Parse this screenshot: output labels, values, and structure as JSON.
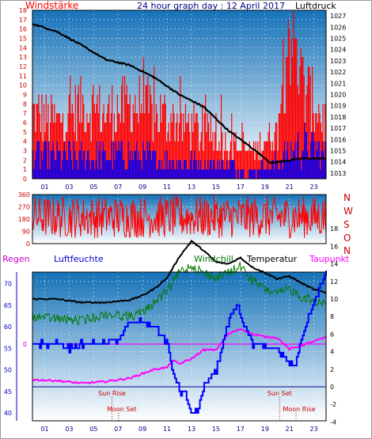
{
  "colors": {
    "wind": "#ff0000",
    "gust_bar": "#ff0000",
    "avg_wind": "#0000ff",
    "pressure": "#000000",
    "direction": "#ff0000",
    "humidity": "#0000ff",
    "windchill": "#007700",
    "temperature": "#000000",
    "dewpoint": "#ff00ff",
    "marker": "#cc0000",
    "zero_line": "#000088",
    "plot_top": "#1572b8",
    "plot_bottom": "#ffffff"
  },
  "chart_data": [
    {
      "type": "bar",
      "title": "24 hour graph day : 12 April 2017",
      "ylabel": "Windstärke",
      "y2label": "Luftdruck",
      "ylim": [
        0,
        18
      ],
      "y2lim": [
        1012.5,
        1027.5
      ],
      "yticks": [
        "0",
        "1",
        "2",
        "3",
        "4",
        "5",
        "6",
        "7",
        "8",
        "9",
        "10",
        "11",
        "12",
        "13",
        "14",
        "15",
        "16",
        "17",
        "18"
      ],
      "y2ticks": [
        "1013",
        "1014",
        "1015",
        "1016",
        "1017",
        "1018",
        "1019",
        "1020",
        "1021",
        "1022",
        "1023",
        "1024",
        "1025",
        "1026",
        "1027"
      ],
      "xticks": [
        "01",
        "03",
        "05",
        "07",
        "09",
        "11",
        "13",
        "15",
        "17",
        "19",
        "21",
        "23"
      ],
      "grid": true,
      "series": [
        {
          "name": "Windstärke",
          "role": "gust",
          "hours": [
            0,
            2,
            4,
            6,
            8,
            10,
            12,
            14,
            16,
            18,
            20,
            21,
            22,
            24
          ],
          "values": [
            7,
            6,
            8,
            7,
            8,
            7,
            6,
            5,
            4,
            3,
            5,
            17,
            10,
            6
          ]
        },
        {
          "name": "Windstärke",
          "role": "average",
          "hours": [
            0,
            4,
            8,
            12,
            16,
            18,
            20,
            22,
            24
          ],
          "values": [
            3,
            2.5,
            3,
            2,
            1.5,
            1,
            2,
            4,
            3
          ]
        },
        {
          "name": "Luftdruck",
          "role": "pressure",
          "hours": [
            0,
            2,
            4,
            6,
            8,
            10,
            12,
            14,
            16,
            18,
            19.5,
            22,
            24
          ],
          "values": [
            1026.3,
            1025.6,
            1024.4,
            1023.1,
            1022.6,
            1021.5,
            1020.0,
            1018.9,
            1016.8,
            1015.2,
            1013.9,
            1014.3,
            1014.3
          ]
        }
      ]
    },
    {
      "type": "line",
      "ylim": [
        0,
        360
      ],
      "yticks": [
        "0",
        "90",
        "180",
        "270",
        "360"
      ],
      "y2ticks": [
        "N",
        "W",
        "S",
        "O",
        "N"
      ],
      "grid": true,
      "series": [
        {
          "name": "Windrichtung",
          "center": 200,
          "range_low": 40,
          "range_high": 350
        }
      ]
    },
    {
      "type": "line",
      "ylabel": "Regen",
      "y1label": "Luftfeuchte",
      "legend": [
        "Windchill",
        "Temperatur",
        "Taupunkt"
      ],
      "ylim": [
        39,
        74
      ],
      "yticks": [
        "40",
        "45",
        "50",
        "55",
        "60",
        "65",
        "70"
      ],
      "y2lim": [
        -5,
        19
      ],
      "y2ticks": [
        "-4",
        "-2",
        "0",
        "2",
        "4",
        "6",
        "8",
        "10",
        "12",
        "14",
        "16",
        "18"
      ],
      "y3ticks": [
        "0"
      ],
      "xticks": [
        "01",
        "03",
        "05",
        "07",
        "09",
        "11",
        "13",
        "15",
        "17",
        "19",
        "21",
        "23"
      ],
      "annotations": [
        {
          "label": "Sun Rise",
          "hour": 6.5
        },
        {
          "label": "Sun Set",
          "hour": 20.2
        },
        {
          "label": "Moon Set",
          "hour": 7.3
        },
        {
          "label": "Moon Rise",
          "hour": 21.8
        }
      ],
      "series": [
        {
          "name": "Luftfeuchte",
          "axis": "left",
          "hours": [
            0,
            2,
            3,
            4,
            5,
            6,
            6.5,
            7,
            8,
            9,
            10,
            11,
            11.5,
            12,
            12.5,
            13,
            13.5,
            14,
            15,
            16,
            16.7,
            17,
            18,
            19,
            20,
            21,
            21.5,
            22,
            23,
            24
          ],
          "values": [
            56,
            56,
            55,
            56,
            56,
            56,
            57,
            57,
            61,
            61,
            60,
            56,
            49,
            45,
            44,
            39.5,
            41,
            46,
            50,
            61,
            65,
            62,
            56,
            55,
            55,
            51,
            51,
            58,
            66,
            73
          ]
        },
        {
          "name": "Windchill",
          "axis": "right",
          "hours": [
            0,
            2,
            4,
            6,
            8,
            9,
            10,
            11,
            12,
            13,
            14,
            15,
            16,
            17,
            18,
            19,
            20,
            21,
            22,
            23,
            24
          ],
          "values": [
            8.6,
            8.3,
            8.1,
            8.8,
            8.6,
            9.0,
            10.2,
            11.4,
            13.6,
            14.4,
            13.5,
            13.0,
            13.5,
            14.3,
            12.6,
            11.7,
            11.1,
            11.7,
            10.8,
            10.4,
            10.1
          ]
        },
        {
          "name": "Temperatur",
          "axis": "right",
          "hours": [
            0,
            2,
            4,
            6,
            8,
            9,
            10,
            11,
            12,
            13,
            14,
            15,
            16,
            17,
            18,
            19,
            20,
            21,
            22,
            23,
            24
          ],
          "values": [
            10.0,
            10.0,
            9.6,
            9.6,
            9.9,
            10.4,
            11.2,
            12.4,
            14.8,
            16.6,
            15.5,
            14.2,
            14.0,
            14.7,
            13.6,
            13.0,
            12.3,
            12.6,
            11.8,
            11.1,
            10.7
          ]
        },
        {
          "name": "Taupunkt",
          "axis": "right",
          "hours": [
            0,
            2,
            4,
            6,
            8,
            9,
            10,
            11,
            11.5,
            12,
            13,
            14,
            15,
            16,
            17,
            18,
            19,
            20,
            21,
            22,
            23,
            24
          ],
          "values": [
            0.8,
            0.7,
            0.4,
            0.6,
            1.0,
            1.5,
            2.0,
            2.2,
            3.0,
            2.6,
            3.2,
            4.2,
            4.2,
            6.0,
            6.6,
            6.0,
            5.7,
            5.6,
            4.3,
            4.7,
            5.2,
            5.6
          ]
        }
      ]
    }
  ]
}
